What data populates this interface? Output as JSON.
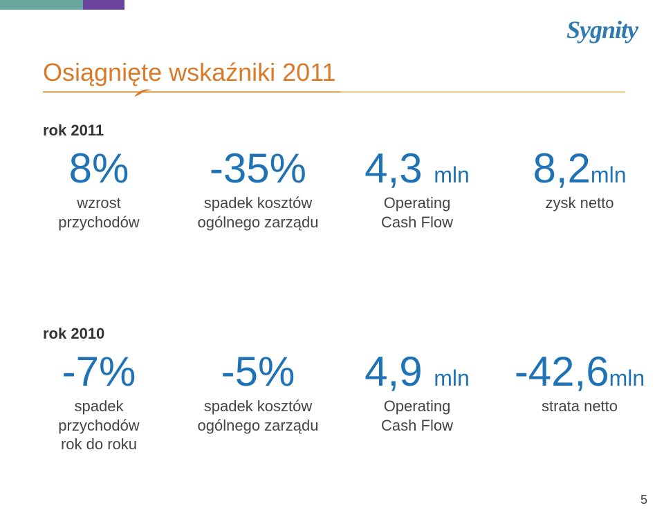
{
  "colors": {
    "teal_light": "#68a79e",
    "teal_dark": "#3e7d78",
    "purple": "#6a449c",
    "orange_title": "#d77b2a",
    "orange_rule": "#e6a450",
    "orange_rule_light": "#f2c88a",
    "blue_metric": "#1f73b5",
    "text_dark": "#333333",
    "text_sublabel": "#444444",
    "logo_blue": "#2f7ab0",
    "circle_green": "#8fbf64",
    "circle_green_light": "#b8d98e"
  },
  "top_bar": {
    "seg1_color": "#68a79e",
    "seg2_color": "#6a449c"
  },
  "logo": {
    "text": "Sygnity"
  },
  "title": "Osiągnięte wskaźniki 2011",
  "sections": {
    "y2011": {
      "label": "rok 2011",
      "metrics": [
        {
          "value": "8%",
          "unit": "",
          "sublabel": "wzrost\nprzychodów"
        },
        {
          "value": "-35%",
          "unit": "",
          "sublabel": "spadek kosztów\nogólnego zarządu"
        },
        {
          "value": "4,3",
          "unit": "mln",
          "sublabel": "Operating\nCash Flow"
        },
        {
          "value": "8,2",
          "unit": "mln",
          "sublabel": "zysk netto",
          "highlighted": true
        }
      ]
    },
    "y2010": {
      "label": "rok 2010",
      "metrics": [
        {
          "value": "-7%",
          "unit": "",
          "sublabel": "spadek\nprzychodów\nrok do roku"
        },
        {
          "value": "-5%",
          "unit": "",
          "sublabel": "spadek kosztów\nogólnego zarządu"
        },
        {
          "value": "4,9",
          "unit": "mln",
          "sublabel": "Operating\nCash Flow"
        },
        {
          "value": "-42,6",
          "unit": "mln",
          "sublabel": "strata netto"
        }
      ]
    }
  },
  "page_number": "5"
}
